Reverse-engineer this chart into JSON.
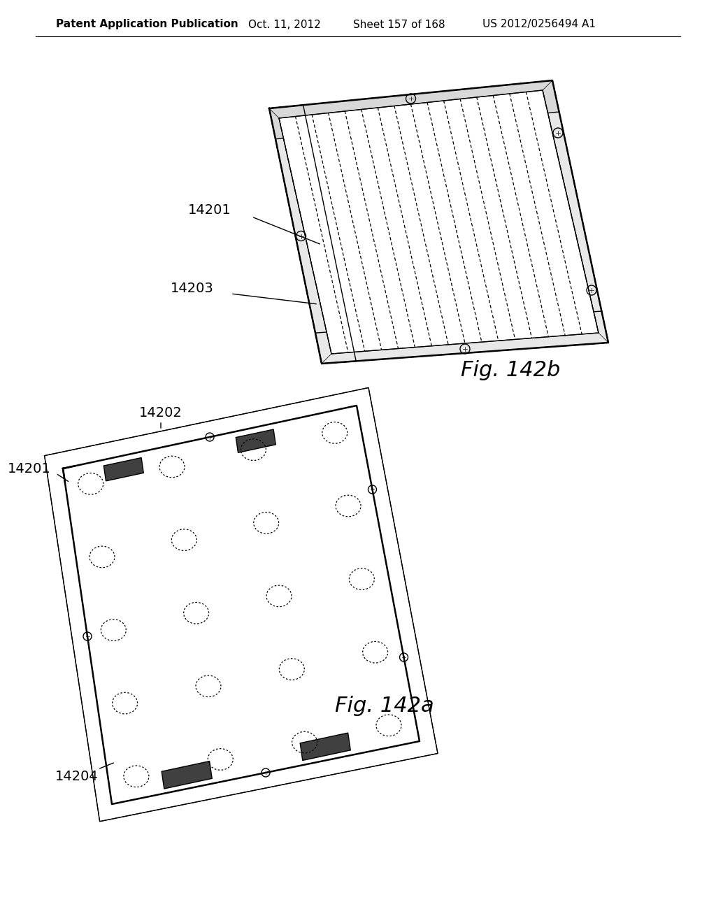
{
  "title": "Patent Application Publication",
  "date": "Oct. 11, 2012",
  "sheet": "Sheet 157 of 168",
  "patent_num": "US 2012/0256494 A1",
  "fig_a_label": "Fig. 142a",
  "fig_b_label": "Fig. 142b",
  "ref_14201_a": "14201",
  "ref_14202": "14202",
  "ref_14203": "14203",
  "ref_14204": "14204",
  "ref_14201_b": "14201",
  "bg_color": "#ffffff",
  "line_color": "#000000",
  "header_fontsize": 11,
  "label_fontsize": 14,
  "fig_label_fontsize": 22
}
